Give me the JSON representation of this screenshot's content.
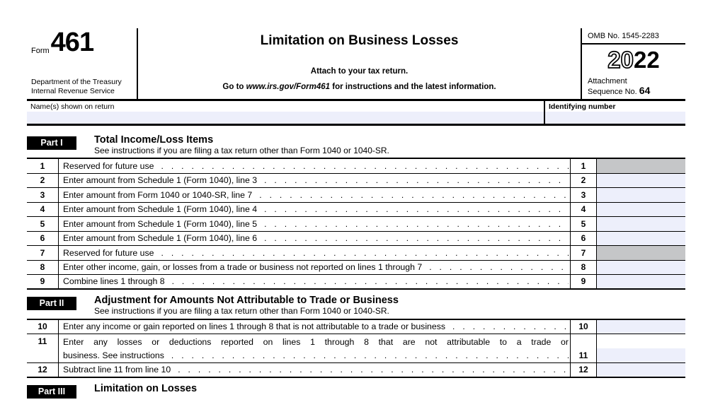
{
  "header": {
    "form_word": "Form",
    "form_number": "461",
    "dept_line1": "Department of the Treasury",
    "dept_line2": "Internal Revenue Service",
    "title": "Limitation on Business Losses",
    "attach_note": "Attach to your tax return.",
    "goto_prefix": "Go to ",
    "goto_url": "www.irs.gov/Form461",
    "goto_suffix": " for instructions and the latest information.",
    "omb": "OMB No. 1545-2283",
    "year_outline": "20",
    "year_bold": "22",
    "attachment_word": "Attachment",
    "sequence_label": "Sequence No. ",
    "sequence_no": "64"
  },
  "fields": {
    "name_label": "Name(s) shown on return",
    "name_value": "",
    "id_label": "Identifying number",
    "id_value": ""
  },
  "parts": {
    "p1": {
      "badge": "Part I",
      "title": "Total Income/Loss Items",
      "subtitle": "See instructions if you are filing a tax return other than Form 1040 or 1040-SR."
    },
    "p2": {
      "badge": "Part II",
      "title": "Adjustment for Amounts Not Attributable to Trade or Business",
      "subtitle": "See instructions if you are filing a tax return other than Form 1040 or 1040-SR."
    },
    "p3": {
      "badge": "Part III",
      "title": "Limitation on Losses"
    }
  },
  "lines": [
    {
      "num": "1",
      "desc": "Reserved for future use",
      "value": "",
      "shaded": true
    },
    {
      "num": "2",
      "desc": "Enter amount from Schedule 1 (Form 1040), line 3",
      "value": "",
      "shaded": false
    },
    {
      "num": "3",
      "desc": "Enter amount from Form 1040 or 1040-SR, line 7",
      "value": "",
      "shaded": false
    },
    {
      "num": "4",
      "desc": "Enter amount from Schedule 1 (Form 1040), line 4",
      "value": "",
      "shaded": false
    },
    {
      "num": "5",
      "desc": "Enter amount from Schedule 1 (Form 1040), line 5",
      "value": "",
      "shaded": false
    },
    {
      "num": "6",
      "desc": "Enter amount from Schedule 1 (Form 1040), line 6",
      "value": "",
      "shaded": false
    },
    {
      "num": "7",
      "desc": "Reserved for future use",
      "value": "",
      "shaded": true
    },
    {
      "num": "8",
      "desc": "Enter other income, gain, or losses from a trade or business not reported on lines 1 through 7",
      "value": "",
      "shaded": false
    },
    {
      "num": "9",
      "desc": "Combine lines 1 through 8",
      "value": "",
      "shaded": false
    },
    {
      "num": "10",
      "desc": "Enter any income or gain reported on lines 1 through 8 that is not attributable to a trade or business",
      "value": "",
      "shaded": false
    },
    {
      "num": "11",
      "desc_line1": "Enter any losses or deductions reported on lines 1 through 8 that are not attributable to a trade or",
      "desc_line2": "business. See instructions",
      "value": "",
      "shaded": false
    },
    {
      "num": "12",
      "desc": "Subtract line 11 from line 10",
      "value": "",
      "shaded": false
    }
  ],
  "leader": {
    "dots": "......................................................................"
  }
}
